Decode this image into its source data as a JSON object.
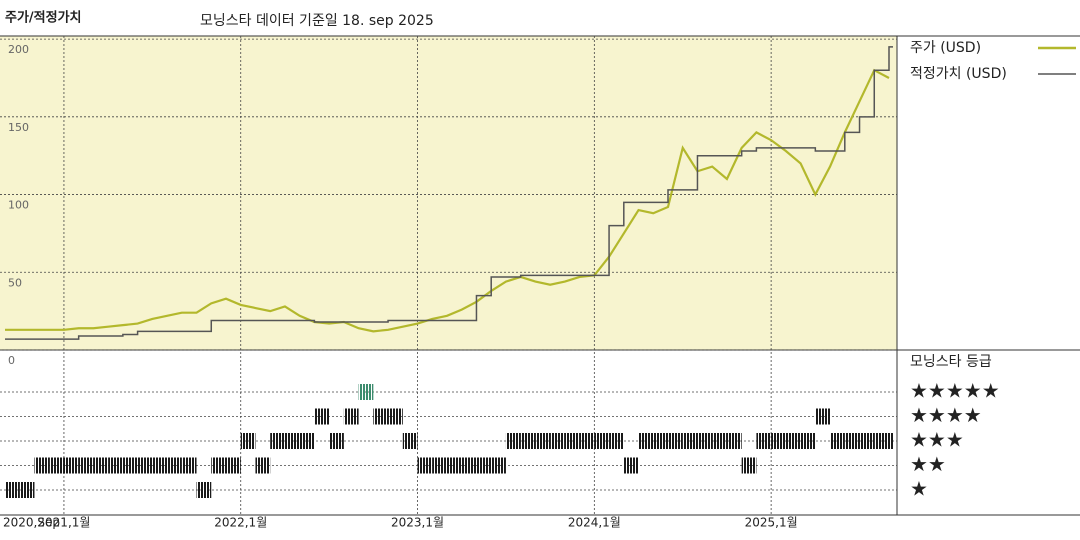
{
  "chart_data": {
    "type": "line",
    "title": "주가/적정가치",
    "subtitle": "모닝스타 데이터 기준일 18. sep 2025",
    "x": [
      "2020-09",
      "2020-10",
      "2020-11",
      "2020-12",
      "2021-01",
      "2021-02",
      "2021-03",
      "2021-04",
      "2021-05",
      "2021-06",
      "2021-07",
      "2021-08",
      "2021-09",
      "2021-10",
      "2021-11",
      "2021-12",
      "2022-01",
      "2022-02",
      "2022-03",
      "2022-04",
      "2022-05",
      "2022-06",
      "2022-07",
      "2022-08",
      "2022-09",
      "2022-10",
      "2022-11",
      "2022-12",
      "2023-01",
      "2023-02",
      "2023-03",
      "2023-04",
      "2023-05",
      "2023-06",
      "2023-07",
      "2023-08",
      "2023-09",
      "2023-10",
      "2023-11",
      "2023-12",
      "2024-01",
      "2024-02",
      "2024-03",
      "2024-04",
      "2024-05",
      "2024-06",
      "2024-07",
      "2024-08",
      "2024-09",
      "2024-10",
      "2024-11",
      "2024-12",
      "2025-01",
      "2025-02",
      "2025-03",
      "2025-04",
      "2025-05",
      "2025-06",
      "2025-07",
      "2025-08",
      "2025-09"
    ],
    "xlim": [
      "2020-09",
      "2025-09"
    ],
    "xticks": [
      {
        "value": "2020-09",
        "label": "2020,Sep"
      },
      {
        "value": "2021-01",
        "label": "2021,1월"
      },
      {
        "value": "2022-01",
        "label": "2022,1월"
      },
      {
        "value": "2023-01",
        "label": "2023,1월"
      },
      {
        "value": "2024-01",
        "label": "2024,1월"
      },
      {
        "value": "2025-01",
        "label": "2025,1월"
      }
    ],
    "ylim": [
      0,
      202
    ],
    "yticks": [
      0,
      50,
      100,
      150,
      200
    ],
    "grid": true,
    "series": [
      {
        "name": "주가 (USD)",
        "color": "#b3b82c",
        "step": false,
        "values": [
          13,
          13,
          13,
          13,
          13,
          14,
          14,
          15,
          16,
          17,
          20,
          22,
          24,
          24,
          30,
          33,
          29,
          27,
          25,
          28,
          22,
          18,
          17,
          18,
          14,
          12,
          13,
          15,
          17,
          20,
          22,
          26,
          31,
          38,
          44,
          47,
          44,
          42,
          44,
          47,
          48,
          60,
          75,
          90,
          88,
          92,
          130,
          115,
          118,
          110,
          130,
          140,
          135,
          128,
          120,
          100,
          118,
          140,
          160,
          180,
          175
        ]
      },
      {
        "name": "적정가치 (USD)",
        "color": "#555555",
        "step": true,
        "values": [
          7,
          7,
          7,
          7,
          7,
          9,
          9,
          9,
          10,
          12,
          12,
          12,
          12,
          12,
          19,
          19,
          19,
          19,
          19,
          19,
          19,
          18,
          18,
          18,
          18,
          18,
          19,
          19,
          19,
          19,
          19,
          19,
          35,
          47,
          47,
          48,
          48,
          48,
          48,
          48,
          48,
          80,
          95,
          95,
          95,
          103,
          103,
          125,
          125,
          125,
          128,
          130,
          130,
          130,
          130,
          128,
          128,
          140,
          150,
          180,
          195
        ]
      }
    ],
    "rating": {
      "title": "모닝스타 등급",
      "levels": [
        {
          "value": 5,
          "label": "★★★★★",
          "color": "#3d8c6e"
        },
        {
          "value": 4,
          "label": "★★★★",
          "color": "#1a1a1a"
        },
        {
          "value": 3,
          "label": "★★★",
          "color": "#1a1a1a"
        },
        {
          "value": 2,
          "label": "★★",
          "color": "#1a1a1a"
        },
        {
          "value": 1,
          "label": "★",
          "color": "#1a1a1a"
        }
      ],
      "values": [
        1,
        1,
        2,
        2,
        2,
        2,
        2,
        2,
        2,
        2,
        2,
        2,
        2,
        1,
        2,
        2,
        3,
        2,
        3,
        3,
        3,
        4,
        3,
        4,
        5,
        4,
        4,
        3,
        2,
        2,
        2,
        2,
        2,
        2,
        3,
        3,
        3,
        3,
        3,
        3,
        3,
        3,
        2,
        3,
        3,
        3,
        3,
        3,
        3,
        3,
        2,
        3,
        3,
        3,
        3,
        4,
        3,
        3,
        3,
        3,
        3
      ]
    }
  }
}
